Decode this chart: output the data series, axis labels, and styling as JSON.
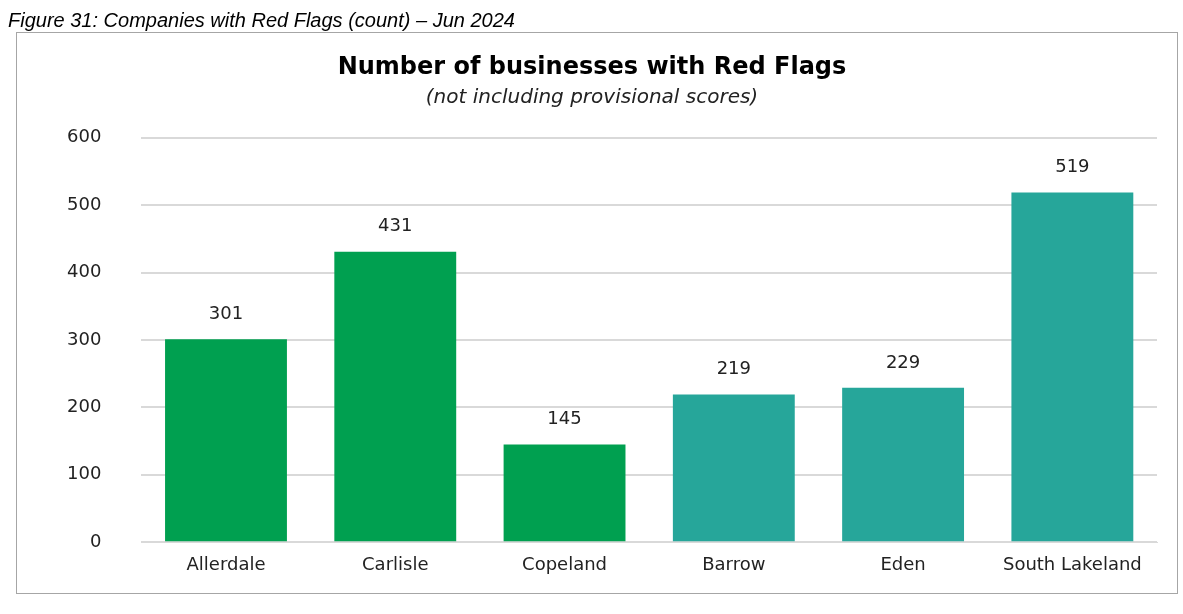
{
  "chart_data": {
    "type": "bar",
    "title": "Number of businesses with Red Flags",
    "subtitle": "(not including provisional scores)",
    "annotations": [
      "Figure 31: Companies with Red Flags (count) – Jun 2024"
    ],
    "categories": [
      "Allerdale",
      "Carlisle",
      "Copeland",
      "Barrow",
      "Eden",
      "South Lakeland"
    ],
    "values": [
      301,
      431,
      145,
      219,
      229,
      519
    ],
    "colors": [
      "#00a050",
      "#00a050",
      "#00a050",
      "#26a69a",
      "#26a69a",
      "#26a69a"
    ],
    "ylim": [
      0,
      600
    ],
    "yticks": [
      0,
      100,
      200,
      300,
      400,
      500,
      600
    ],
    "grid": "y",
    "legend": false,
    "data_labels": true
  }
}
